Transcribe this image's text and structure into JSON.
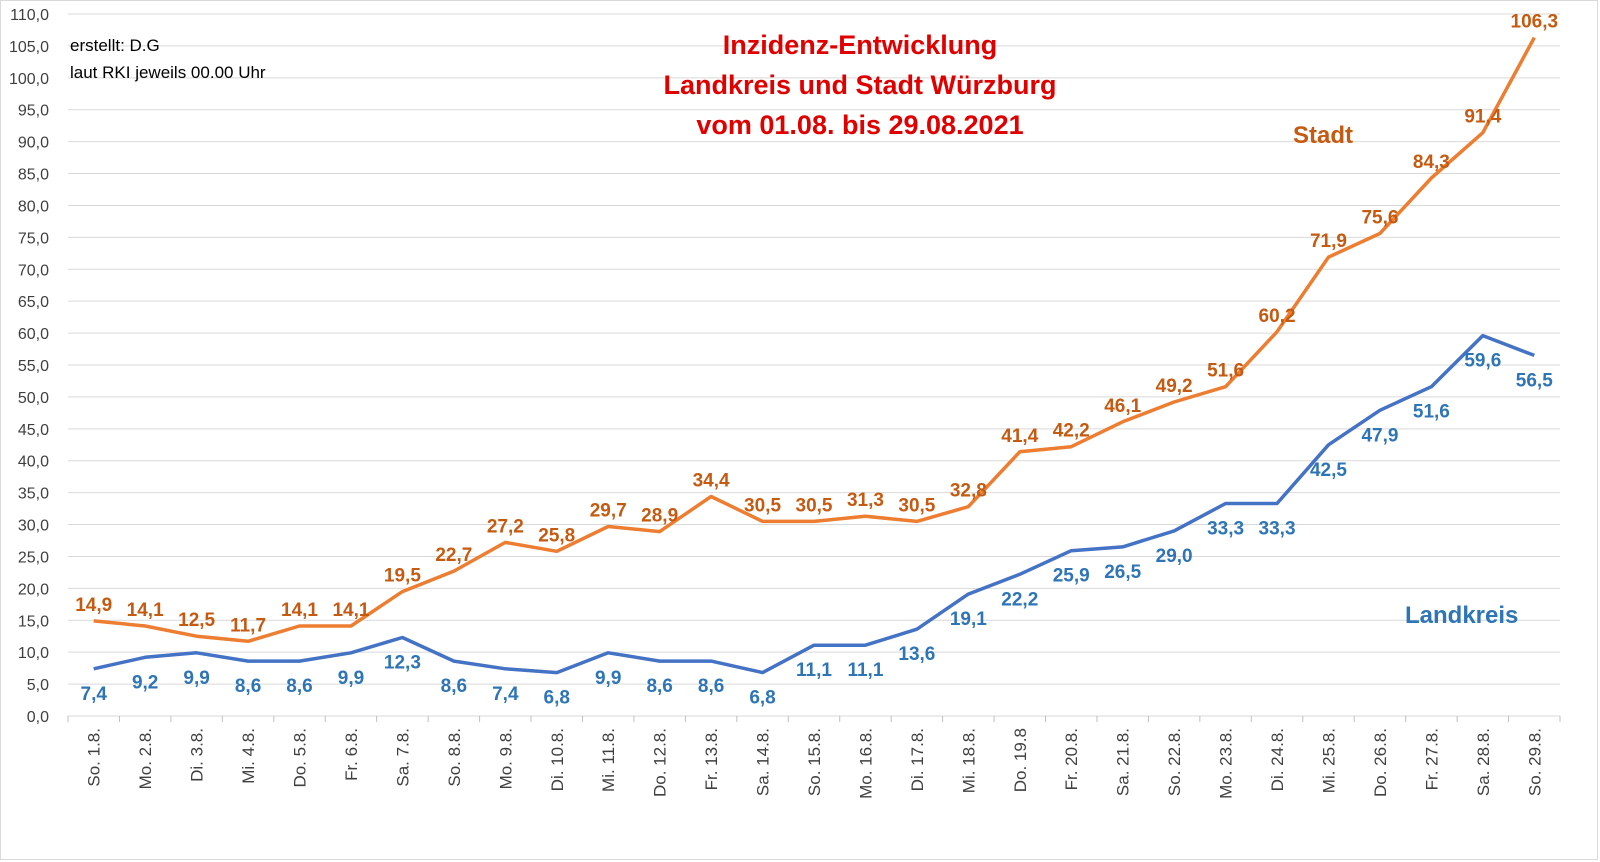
{
  "chart_data": {
    "type": "line",
    "title": [
      "Inzidenz-Entwicklung",
      "Landkreis und Stadt Würzburg",
      "vom 01.08.  bis 29.08.2021"
    ],
    "notes": [
      "erstellt: D.G",
      "laut RKI jeweils 00.00 Uhr"
    ],
    "categories": [
      "So. 1.8.",
      "Mo. 2.8.",
      "Di. 3.8.",
      "Mi. 4.8.",
      "Do. 5.8.",
      "Fr. 6.8.",
      "Sa. 7.8.",
      "So. 8.8.",
      "Mo. 9.8.",
      "Di. 10.8.",
      "Mi. 11.8.",
      "Do. 12.8.",
      "Fr. 13.8.",
      "Sa. 14.8.",
      "So. 15.8.",
      "Mo. 16.8.",
      "Di. 17.8.",
      "Mi. 18.8.",
      "Do. 19.8",
      "Fr. 20.8.",
      "Sa. 21.8.",
      "So. 22.8.",
      "Mo. 23.8.",
      "Di. 24.8.",
      "Mi. 25.8.",
      "Do. 26.8.",
      "Fr. 27.8.",
      "Sa. 28.8.",
      "So. 29.8."
    ],
    "series": [
      {
        "name": "Stadt",
        "color": "#ed7d31",
        "label_color": "#c55a11",
        "values": [
          14.9,
          14.1,
          12.5,
          11.7,
          14.1,
          14.1,
          19.5,
          22.7,
          27.2,
          25.8,
          29.7,
          28.9,
          34.4,
          30.5,
          30.5,
          31.3,
          30.5,
          32.8,
          41.4,
          42.2,
          46.1,
          49.2,
          51.6,
          60.2,
          71.9,
          75.6,
          84.3,
          91.4,
          106.3
        ],
        "labels": [
          "14,9",
          "14,1",
          "12,5",
          "11,7",
          "14,1",
          "14,1",
          "19,5",
          "22,7",
          "27,2",
          "25,8",
          "29,7",
          "28,9",
          "34,4",
          "30,5",
          "30,5",
          "31,3",
          "30,5",
          "32,8",
          "41,4",
          "42,2",
          "46,1",
          "49,2",
          "51,6",
          "60,2",
          "71,9",
          "75,6",
          "84,3",
          "91,4",
          "106,3"
        ]
      },
      {
        "name": "Landkreis",
        "color": "#4472c4",
        "label_color": "#2e75b6",
        "values": [
          7.4,
          9.2,
          9.9,
          8.6,
          8.6,
          9.9,
          12.3,
          8.6,
          7.4,
          6.8,
          9.9,
          8.6,
          8.6,
          6.8,
          11.1,
          11.1,
          13.6,
          19.1,
          22.2,
          25.9,
          26.5,
          29.0,
          33.3,
          33.3,
          42.5,
          47.9,
          51.6,
          59.6,
          56.5
        ],
        "labels": [
          "7,4",
          "9,2",
          "9,9",
          "8,6",
          "8,6",
          "9,9",
          "12,3",
          "8,6",
          "7,4",
          "6,8",
          "9,9",
          "8,6",
          "8,6",
          "6,8",
          "11,1",
          "11,1",
          "13,6",
          "19,1",
          "22,2",
          "25,9",
          "26,5",
          "29,0",
          "33,3",
          "33,3",
          "42,5",
          "47,9",
          "51,6",
          "59,6",
          "56,5"
        ]
      }
    ],
    "ylim": [
      0,
      110
    ],
    "yticks": [
      "0,0",
      "5,0",
      "10,0",
      "15,0",
      "20,0",
      "25,0",
      "30,0",
      "35,0",
      "40,0",
      "45,0",
      "50,0",
      "55,0",
      "60,0",
      "65,0",
      "70,0",
      "75,0",
      "80,0",
      "85,0",
      "90,0",
      "95,0",
      "100,0",
      "105,0",
      "110,0"
    ],
    "ystep": 5,
    "grid": true,
    "xlabel": "",
    "ylabel": ""
  }
}
